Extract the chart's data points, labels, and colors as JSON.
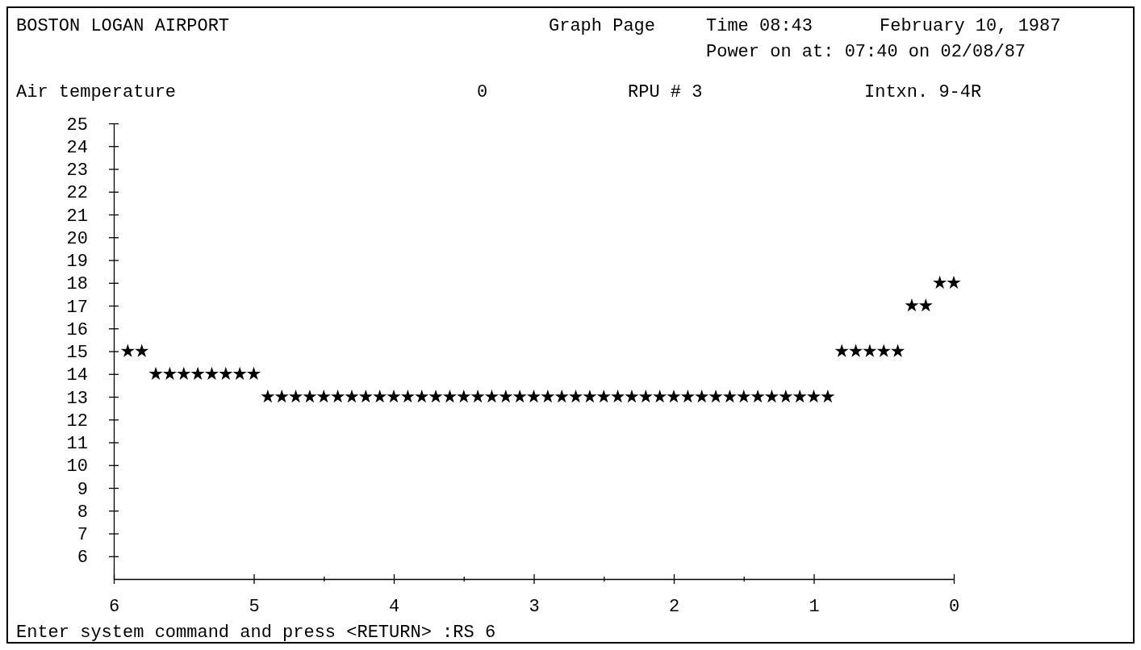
{
  "chart_data": {
    "type": "scatter",
    "title": "BOSTON LOGAN AIRPORT",
    "ylabel": "Air temperature",
    "annotations": [
      "Graph Page",
      "Time 08:43",
      "February 10, 1987",
      "Power on at: 07:40 on 02/08/87",
      "0",
      "RPU # 3",
      "Intxn. 9-4R",
      "Enter system command and press <RETURN> :RS 6"
    ],
    "x": [
      5.9,
      5.8,
      5.7,
      5.6,
      5.5,
      5.4,
      5.3,
      5.2,
      5.1,
      5.0,
      4.9,
      4.8,
      4.7,
      4.6,
      4.5,
      4.4,
      4.3,
      4.2,
      4.1,
      4.0,
      3.9,
      3.8,
      3.7,
      3.6,
      3.5,
      3.4,
      3.3,
      3.2,
      3.1,
      3.0,
      2.9,
      2.8,
      2.7,
      2.6,
      2.5,
      2.4,
      2.3,
      2.2,
      2.1,
      2.0,
      1.9,
      1.8,
      1.7,
      1.6,
      1.5,
      1.4,
      1.3,
      1.2,
      1.1,
      1.0,
      0.9,
      0.8,
      0.7,
      0.6,
      0.5,
      0.4,
      0.3,
      0.2,
      0.1,
      0
    ],
    "series": [
      {
        "color": "#000000",
        "values": [
          15,
          15,
          14,
          14,
          14,
          14,
          14,
          14,
          14,
          14,
          13,
          13,
          13,
          13,
          13,
          13,
          13,
          13,
          13,
          13,
          13,
          13,
          13,
          13,
          13,
          13,
          13,
          13,
          13,
          13,
          13,
          13,
          13,
          13,
          13,
          13,
          13,
          13,
          13,
          13,
          13,
          13,
          13,
          13,
          13,
          13,
          13,
          13,
          13,
          13,
          13,
          15,
          15,
          15,
          15,
          15,
          17,
          17,
          18,
          18
        ]
      }
    ],
    "marker": "star",
    "xlim": [
      6,
      0
    ],
    "xticks": [
      6,
      5,
      {
        "value": 4.5,
        "label": null
      },
      4,
      {
        "value": 3.5,
        "label": null
      },
      3,
      {
        "value": 2.5,
        "label": null
      },
      2,
      {
        "value": 1.5,
        "label": null
      },
      1,
      0
    ],
    "ylim": [
      5,
      25
    ],
    "yticks": [
      6,
      7,
      8,
      9,
      10,
      11,
      12,
      13,
      14,
      15,
      16,
      17,
      18,
      19,
      20,
      21,
      22,
      23,
      24,
      25
    ]
  }
}
